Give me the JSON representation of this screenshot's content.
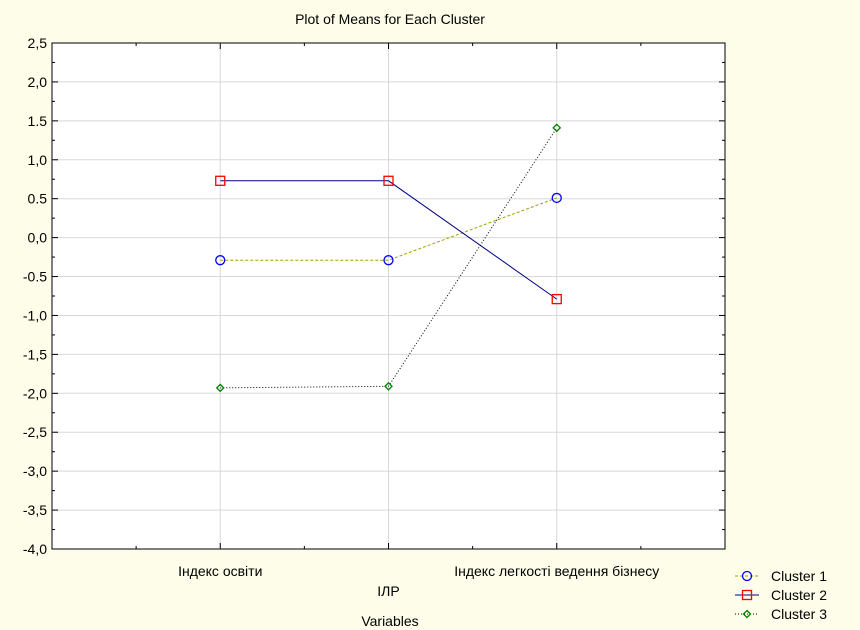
{
  "chart_data": {
    "type": "line",
    "title": "Plot of Means for Each Cluster",
    "xlabel": "Variables",
    "ylabel": "",
    "categories": [
      "Індекс освіти",
      "ІЛР",
      "Індекс легкості ведення бізнесу"
    ],
    "ylim": [
      -4.0,
      2.5
    ],
    "yticks": [
      "2,5",
      "2,0",
      "1.5",
      "1,0",
      "0.5",
      "0,0",
      "-0.5",
      "-1,0",
      "-1,5",
      "-2,0",
      "-2,5",
      "-3,0",
      "-3,5",
      "-4,0"
    ],
    "grid": true,
    "legend_position": "bottom-right",
    "series": [
      {
        "name": "Cluster  1",
        "values": [
          -0.29,
          -0.29,
          0.51
        ],
        "color": "#0000ff",
        "line_color": "#a0a000",
        "marker": "circle",
        "line_style": "dashed"
      },
      {
        "name": "Cluster  2",
        "values": [
          0.73,
          0.73,
          -0.79
        ],
        "color": "#ff0000",
        "line_color": "#000080",
        "marker": "square",
        "line_style": "solid"
      },
      {
        "name": "Cluster  3",
        "values": [
          -1.93,
          -1.91,
          1.41
        ],
        "color": "#008000",
        "line_color": "#000000",
        "marker": "diamond",
        "line_style": "dotted"
      }
    ]
  }
}
